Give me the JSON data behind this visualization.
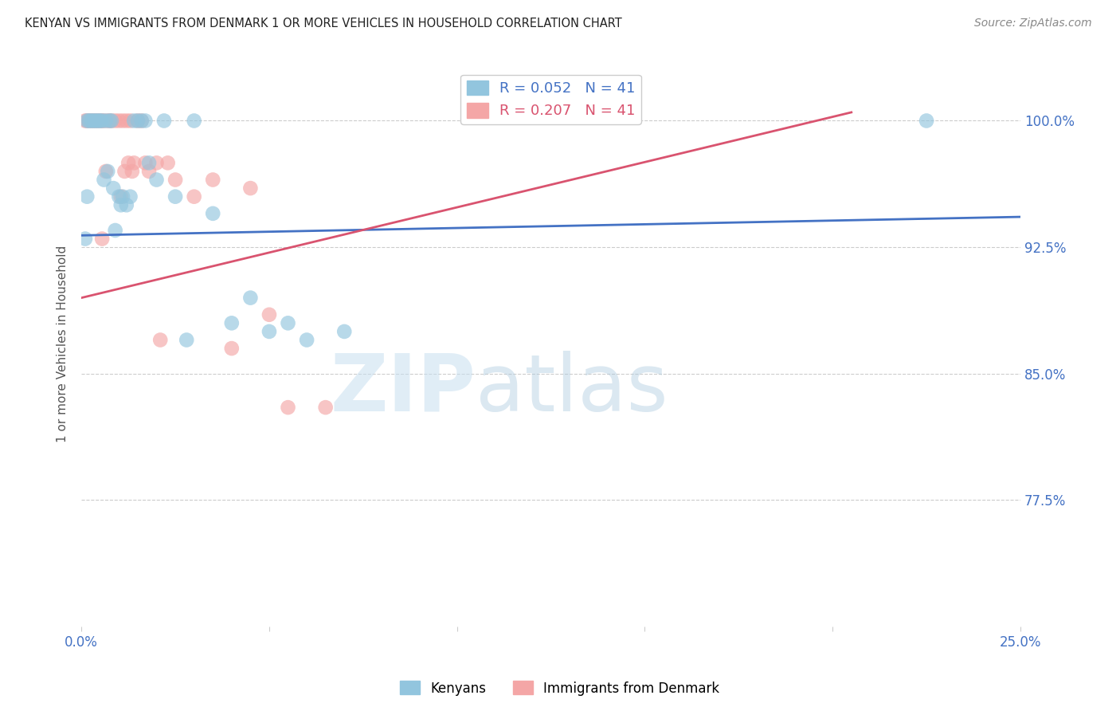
{
  "title": "KENYAN VS IMMIGRANTS FROM DENMARK 1 OR MORE VEHICLES IN HOUSEHOLD CORRELATION CHART",
  "source": "Source: ZipAtlas.com",
  "ylabel": "1 or more Vehicles in Household",
  "xlim": [
    0.0,
    25.0
  ],
  "ylim": [
    70.0,
    103.5
  ],
  "yticks": [
    77.5,
    85.0,
    92.5,
    100.0
  ],
  "xticks": [
    0.0,
    5.0,
    10.0,
    15.0,
    20.0,
    25.0
  ],
  "ytick_labels": [
    "77.5%",
    "85.0%",
    "92.5%",
    "100.0%"
  ],
  "legend_blue_r": "R = 0.052",
  "legend_blue_n": "N = 41",
  "legend_pink_r": "R = 0.207",
  "legend_pink_n": "N = 41",
  "blue_color": "#92c5de",
  "pink_color": "#f4a6a6",
  "blue_line_color": "#4472c4",
  "pink_line_color": "#d9536f",
  "watermark_zip": "ZIP",
  "watermark_atlas": "atlas",
  "blue_line_x": [
    0.0,
    25.0
  ],
  "blue_line_y": [
    93.2,
    94.3
  ],
  "pink_line_x": [
    0.0,
    20.5
  ],
  "pink_line_y": [
    89.5,
    100.5
  ],
  "blue_scatter_x": [
    0.15,
    0.15,
    0.2,
    0.25,
    0.3,
    0.35,
    0.4,
    0.45,
    0.5,
    0.55,
    0.6,
    0.65,
    0.7,
    0.75,
    0.8,
    0.85,
    0.9,
    1.0,
    1.05,
    1.1,
    1.2,
    1.3,
    1.4,
    1.5,
    1.6,
    1.7,
    1.8,
    2.0,
    2.2,
    2.5,
    2.8,
    3.0,
    3.5,
    4.0,
    4.5,
    5.0,
    5.5,
    6.0,
    7.0,
    22.5,
    0.1
  ],
  "blue_scatter_y": [
    100.0,
    95.5,
    100.0,
    100.0,
    100.0,
    100.0,
    100.0,
    100.0,
    100.0,
    100.0,
    96.5,
    100.0,
    97.0,
    100.0,
    100.0,
    96.0,
    93.5,
    95.5,
    95.0,
    95.5,
    95.0,
    95.5,
    100.0,
    100.0,
    100.0,
    100.0,
    97.5,
    96.5,
    100.0,
    95.5,
    87.0,
    100.0,
    94.5,
    88.0,
    89.5,
    87.5,
    88.0,
    87.0,
    87.5,
    100.0,
    93.0
  ],
  "pink_scatter_x": [
    0.1,
    0.15,
    0.2,
    0.25,
    0.3,
    0.35,
    0.4,
    0.45,
    0.5,
    0.55,
    0.6,
    0.65,
    0.7,
    0.75,
    0.8,
    0.9,
    1.0,
    1.1,
    1.2,
    1.3,
    1.4,
    1.5,
    1.6,
    1.7,
    1.8,
    2.0,
    2.3,
    2.5,
    3.0,
    3.5,
    4.0,
    4.5,
    5.0,
    5.5,
    6.5,
    1.05,
    0.55,
    1.15,
    1.35,
    2.1,
    1.25
  ],
  "pink_scatter_y": [
    100.0,
    100.0,
    100.0,
    100.0,
    100.0,
    100.0,
    100.0,
    100.0,
    100.0,
    100.0,
    100.0,
    97.0,
    100.0,
    100.0,
    100.0,
    100.0,
    100.0,
    100.0,
    100.0,
    100.0,
    97.5,
    100.0,
    100.0,
    97.5,
    97.0,
    97.5,
    97.5,
    96.5,
    95.5,
    96.5,
    86.5,
    96.0,
    88.5,
    83.0,
    83.0,
    95.5,
    93.0,
    97.0,
    97.0,
    87.0,
    97.5
  ]
}
